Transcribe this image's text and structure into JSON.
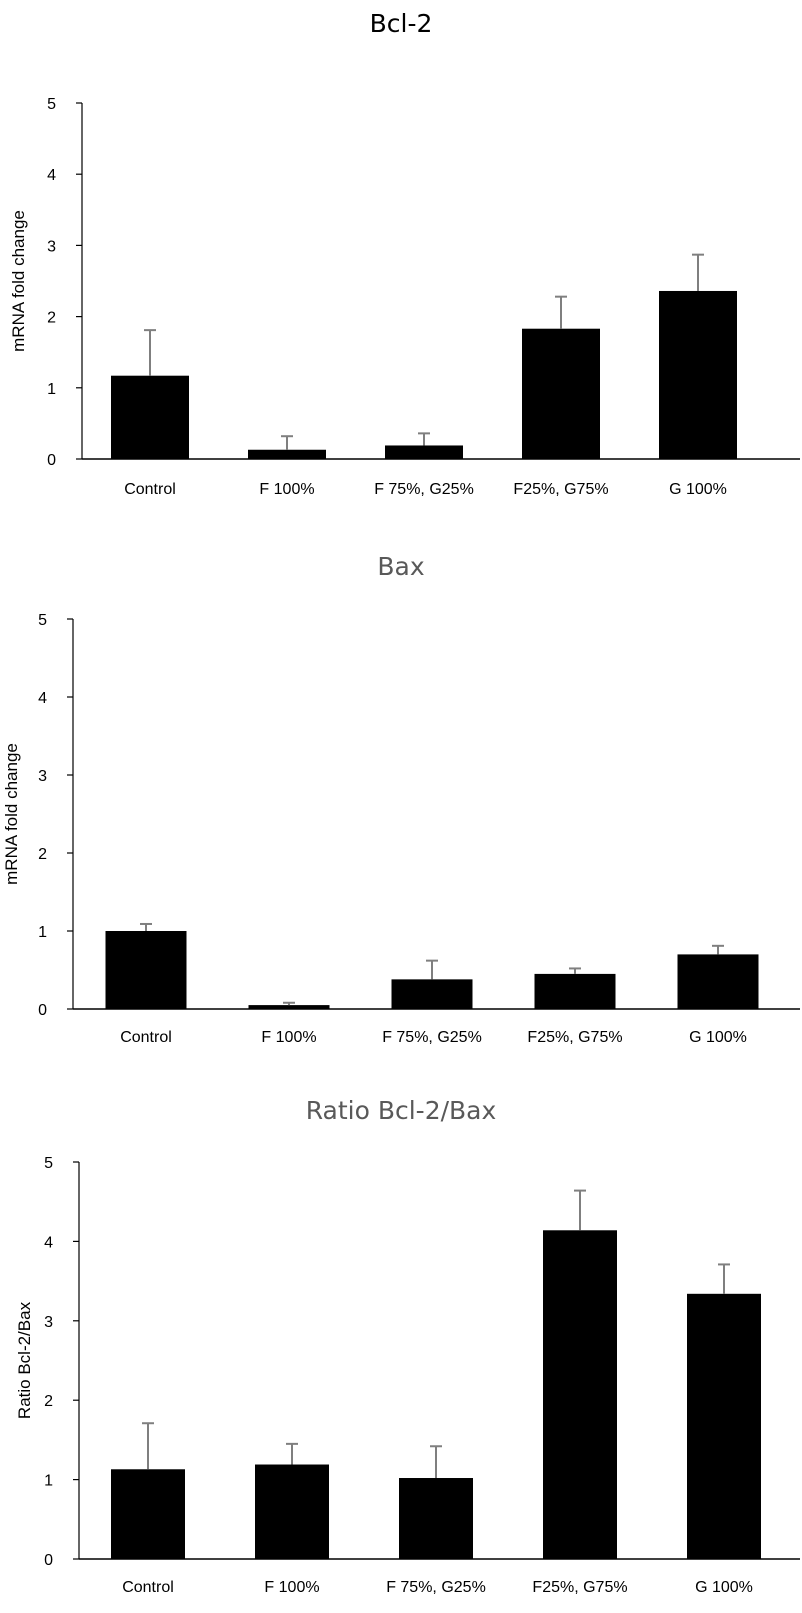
{
  "chart_data": [
    {
      "type": "bar",
      "title": "Bcl-2",
      "ylabel": "mRNA fold change",
      "xlabel": "",
      "ylim": [
        0,
        5
      ],
      "yticks": [
        "0",
        "1",
        "2",
        "3",
        "4",
        "5"
      ],
      "categories": [
        "Control",
        "F 100%",
        "F 75%,  G25%",
        "F25%,  G75%",
        "G 100%"
      ],
      "values": [
        1.17,
        0.13,
        0.19,
        1.83,
        2.36
      ],
      "errors": [
        0.64,
        0.19,
        0.17,
        0.45,
        0.51
      ],
      "title_color": "#000000"
    },
    {
      "type": "bar",
      "title": "Bax",
      "ylabel": "mRNA fold change",
      "xlabel": "",
      "ylim": [
        0,
        5
      ],
      "yticks": [
        "0",
        "1",
        "2",
        "3",
        "4",
        "5"
      ],
      "categories": [
        "Control",
        "F 100%",
        "F 75%, G25%",
        "F25%, G75%",
        "G 100%"
      ],
      "values": [
        1.0,
        0.05,
        0.38,
        0.45,
        0.7
      ],
      "errors": [
        0.09,
        0.03,
        0.24,
        0.07,
        0.11
      ],
      "title_color": "#595959"
    },
    {
      "type": "bar",
      "title": "Ratio Bcl-2/Bax",
      "ylabel": "Ratio Bcl-2/Bax",
      "xlabel": "",
      "ylim": [
        0,
        5
      ],
      "yticks": [
        "0",
        "1",
        "2",
        "3",
        "4",
        "5"
      ],
      "categories": [
        "Control",
        "F 100%",
        "F 75%, G25%",
        "F25%, G75%",
        "G 100%"
      ],
      "values": [
        1.13,
        1.19,
        1.02,
        4.14,
        3.34
      ],
      "errors": [
        0.58,
        0.26,
        0.4,
        0.5,
        0.37
      ],
      "title_color": "#595959"
    }
  ]
}
